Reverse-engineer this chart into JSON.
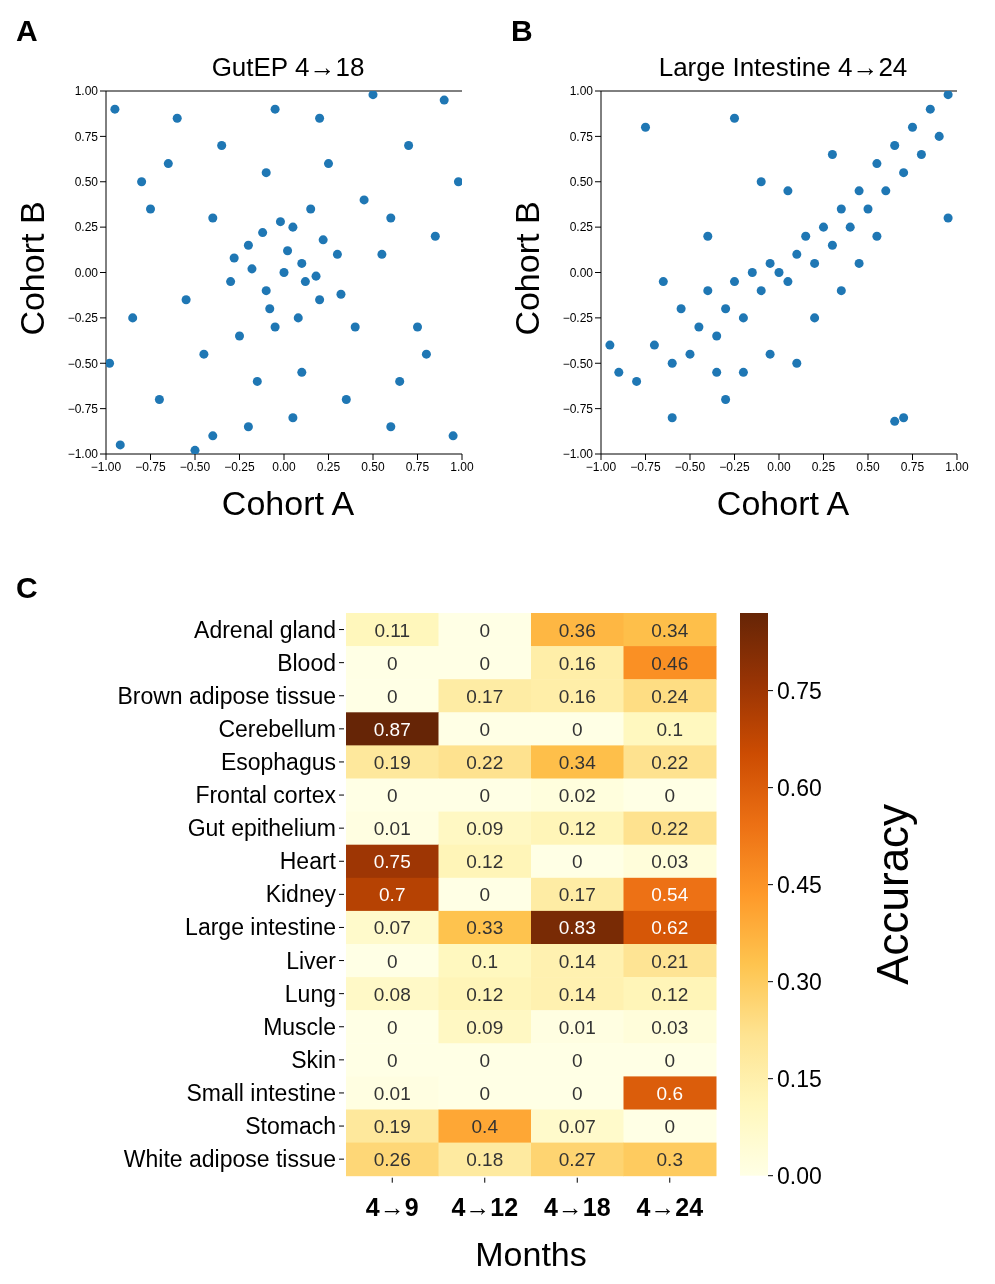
{
  "chart_data": [
    {
      "type": "scatter",
      "title": "GutEP  4→18",
      "xlabel": "Cohort A",
      "ylabel": "Cohort B",
      "annotations": [
        "A"
      ],
      "color": "#1f77b4",
      "marker": "circle",
      "xlim": [
        -1,
        1
      ],
      "ylim": [
        -1,
        1
      ],
      "xticks": [
        {
          "value": -1,
          "label": "−1.00"
        },
        {
          "value": -0.75,
          "label": "−0.75"
        },
        {
          "value": -0.5,
          "label": "−0.50"
        },
        {
          "value": -0.25,
          "label": "−0.25"
        },
        {
          "value": 0,
          "label": "0.00"
        },
        {
          "value": 0.25,
          "label": "0.25"
        },
        {
          "value": 0.5,
          "label": "0.50"
        },
        {
          "value": 0.75,
          "label": "0.75"
        },
        {
          "value": 1,
          "label": "1.00"
        }
      ],
      "yticks": [
        {
          "value": -1,
          "label": "−1.00"
        },
        {
          "value": -0.75,
          "label": "−0.75"
        },
        {
          "value": -0.5,
          "label": "−0.50"
        },
        {
          "value": -0.25,
          "label": "−0.25"
        },
        {
          "value": 0,
          "label": "0.00"
        },
        {
          "value": 0.25,
          "label": "0.25"
        },
        {
          "value": 0.5,
          "label": "0.50"
        },
        {
          "value": 0.75,
          "label": "0.75"
        },
        {
          "value": 1,
          "label": "1.00"
        }
      ],
      "x": [
        0,
        0.1,
        -0.1,
        0.2,
        -0.2,
        0.05,
        -0.05,
        0.3,
        -0.3,
        0.15,
        -0.25,
        0.4,
        -0.4,
        0.45,
        -0.45,
        0.55,
        -0.55,
        0.1,
        -0.1,
        0.65,
        -0.65,
        0.7,
        -0.7,
        0.85,
        -0.85,
        0.2,
        -0.2,
        0.95,
        -0.95,
        0.9,
        -0.92,
        0.6,
        -0.6,
        0.35,
        -0.35,
        0.75,
        -0.75,
        0.25,
        -0.15,
        0.05,
        -0.05,
        0.98,
        -0.98,
        0.5,
        -0.5,
        0.02,
        -0.08,
        0.12,
        -0.18,
        0.22,
        -0.28,
        0.32,
        -0.12,
        0.08,
        -0.02,
        0.18,
        0.6,
        -0.8,
        0.8,
        -0.4
      ],
      "values": [
        0,
        0.05,
        -0.1,
        -0.15,
        0.15,
        0.25,
        -0.3,
        0.1,
        -0.05,
        0.35,
        -0.35,
        -0.3,
        0.3,
        0.4,
        -0.45,
        0.1,
        -0.15,
        -0.55,
        0.55,
        -0.6,
        0.6,
        0.7,
        -0.7,
        0.2,
        -0.25,
        0.85,
        -0.85,
        -0.9,
        0.9,
        0.95,
        -0.95,
        -0.85,
        0.85,
        -0.7,
        0.7,
        -0.3,
        0.35,
        0.6,
        -0.6,
        -0.8,
        0.9,
        0.5,
        -0.5,
        0.98,
        -0.98,
        0.12,
        -0.2,
        -0.05,
        0.02,
        0.18,
        0.08,
        -0.12,
        0.22,
        -0.25,
        0.28,
        -0.02,
        0.3,
        0.5,
        -0.45,
        -0.9
      ]
    },
    {
      "type": "scatter",
      "title": "Large Intestine  4→24",
      "xlabel": "Cohort A",
      "ylabel": "Cohort B",
      "annotations": [
        "B"
      ],
      "color": "#1f77b4",
      "marker": "circle",
      "xlim": [
        -1,
        1
      ],
      "ylim": [
        -1,
        1
      ],
      "xticks": [
        {
          "value": -1,
          "label": "−1.00"
        },
        {
          "value": -0.75,
          "label": "−0.75"
        },
        {
          "value": -0.5,
          "label": "−0.50"
        },
        {
          "value": -0.25,
          "label": "−0.25"
        },
        {
          "value": 0,
          "label": "0.00"
        },
        {
          "value": 0.25,
          "label": "0.25"
        },
        {
          "value": 0.5,
          "label": "0.50"
        },
        {
          "value": 0.75,
          "label": "0.75"
        },
        {
          "value": 1,
          "label": "1.00"
        }
      ],
      "yticks": [
        {
          "value": -1,
          "label": "−1.00"
        },
        {
          "value": -0.75,
          "label": "−0.75"
        },
        {
          "value": -0.5,
          "label": "−0.50"
        },
        {
          "value": -0.25,
          "label": "−0.25"
        },
        {
          "value": 0,
          "label": "0.00"
        },
        {
          "value": 0.25,
          "label": "0.25"
        },
        {
          "value": 0.5,
          "label": "0.50"
        },
        {
          "value": 0.75,
          "label": "0.75"
        },
        {
          "value": 1,
          "label": "1.00"
        }
      ],
      "x": [
        -0.9,
        -0.8,
        -0.7,
        -0.6,
        -0.55,
        -0.5,
        -0.45,
        -0.4,
        -0.35,
        -0.3,
        -0.25,
        -0.2,
        -0.15,
        -0.1,
        -0.05,
        0,
        0.05,
        0.1,
        0.15,
        0.2,
        0.25,
        0.3,
        0.35,
        0.4,
        0.45,
        0.5,
        0.55,
        0.6,
        0.65,
        0.7,
        0.75,
        0.8,
        0.85,
        0.9,
        0.95,
        -0.95,
        -0.75,
        -0.25,
        0.7,
        0.65,
        0.95,
        -0.6,
        -0.3,
        0.1,
        -0.1,
        0.3,
        -0.2,
        0.2,
        -0.4,
        0.45,
        -0.05,
        0.05,
        -0.65,
        0.35,
        0.55,
        -0.35
      ],
      "values": [
        -0.55,
        -0.6,
        -0.4,
        -0.5,
        -0.2,
        -0.45,
        -0.3,
        -0.1,
        -0.35,
        -0.2,
        -0.05,
        -0.25,
        0,
        -0.1,
        0.05,
        0,
        -0.05,
        0.1,
        0.2,
        0.05,
        0.25,
        0.15,
        0.35,
        0.25,
        0.45,
        0.35,
        0.6,
        0.45,
        0.7,
        0.55,
        0.8,
        0.65,
        0.9,
        0.75,
        0.98,
        -0.4,
        0.8,
        0.85,
        -0.8,
        -0.82,
        0.3,
        -0.8,
        -0.7,
        -0.5,
        0.5,
        0.65,
        -0.55,
        -0.25,
        0.2,
        0.05,
        -0.45,
        0.45,
        -0.05,
        -0.1,
        0.2,
        -0.55
      ]
    },
    {
      "type": "heatmap",
      "xlabel": "Months",
      "clabel": "Accuracy",
      "annotations": [
        "C"
      ],
      "data_labels": true,
      "categories": [
        "4→9",
        "4→12",
        "4→18",
        "4→24"
      ],
      "y_categories": [
        "Adrenal gland",
        "Blood",
        "Brown adipose tissue",
        "Cerebellum",
        "Esophagus",
        "Frontal cortex",
        "Gut epithelium",
        "Heart",
        "Kidney",
        "Large intestine",
        "Liver",
        "Lung",
        "Muscle",
        "Skin",
        "Small intestine",
        "Stomach",
        "White adipose tissue"
      ],
      "cells": [
        [
          0.11,
          0,
          0.36,
          0.34
        ],
        [
          0,
          0,
          0.16,
          0.46
        ],
        [
          0,
          0.17,
          0.16,
          0.24
        ],
        [
          0.87,
          0,
          0,
          0.1
        ],
        [
          0.19,
          0.22,
          0.34,
          0.22
        ],
        [
          0,
          0,
          0.02,
          0
        ],
        [
          0.01,
          0.09,
          0.12,
          0.22
        ],
        [
          0.75,
          0.12,
          0,
          0.03
        ],
        [
          0.7,
          0,
          0.17,
          0.54
        ],
        [
          0.07,
          0.33,
          0.83,
          0.62
        ],
        [
          0,
          0.1,
          0.14,
          0.21
        ],
        [
          0.08,
          0.12,
          0.14,
          0.12
        ],
        [
          0,
          0.09,
          0.01,
          0.03
        ],
        [
          0,
          0,
          0,
          0
        ],
        [
          0.01,
          0,
          0,
          0.6
        ],
        [
          0.19,
          0.4,
          0.07,
          0
        ],
        [
          0.26,
          0.18,
          0.27,
          0.3
        ]
      ],
      "clim": [
        0,
        0.87
      ],
      "cticks": [
        {
          "value": 0,
          "label": "0.00"
        },
        {
          "value": 0.15,
          "label": "0.15"
        },
        {
          "value": 0.3,
          "label": "0.30"
        },
        {
          "value": 0.45,
          "label": "0.45"
        },
        {
          "value": 0.6,
          "label": "0.60"
        },
        {
          "value": 0.75,
          "label": "0.75"
        }
      ]
    }
  ]
}
